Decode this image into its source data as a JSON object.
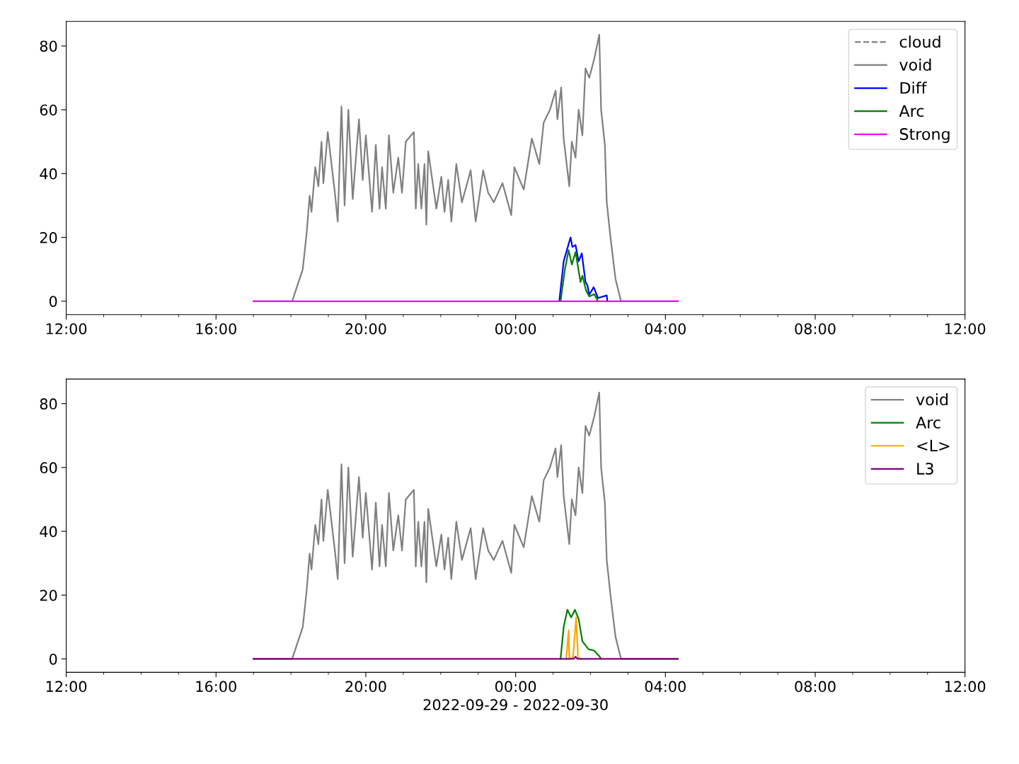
{
  "chart_data": [
    {
      "type": "line",
      "xlim": [
        "2022-09-29T12:00",
        "2022-09-30T12:00"
      ],
      "ylim": [
        -4.2,
        87.7
      ],
      "yticks": [
        0,
        20,
        40,
        60,
        80
      ],
      "xticks": [
        {
          "value": "2022-09-29T12:00",
          "label": "12:00"
        },
        {
          "value": "2022-09-29T13:00",
          "label": null
        },
        {
          "value": "2022-09-29T14:00",
          "label": null
        },
        {
          "value": "2022-09-29T15:00",
          "label": null
        },
        {
          "value": "2022-09-29T16:00",
          "label": "16:00"
        },
        {
          "value": "2022-09-29T17:00",
          "label": null
        },
        {
          "value": "2022-09-29T18:00",
          "label": null
        },
        {
          "value": "2022-09-29T19:00",
          "label": null
        },
        {
          "value": "2022-09-29T20:00",
          "label": "20:00"
        },
        {
          "value": "2022-09-29T21:00",
          "label": null
        },
        {
          "value": "2022-09-29T22:00",
          "label": null
        },
        {
          "value": "2022-09-29T23:00",
          "label": null
        },
        {
          "value": "2022-09-30T00:00",
          "label": "00:00"
        },
        {
          "value": "2022-09-30T01:00",
          "label": null
        },
        {
          "value": "2022-09-30T02:00",
          "label": null
        },
        {
          "value": "2022-09-30T03:00",
          "label": null
        },
        {
          "value": "2022-09-30T04:00",
          "label": "04:00"
        },
        {
          "value": "2022-09-30T05:00",
          "label": null
        },
        {
          "value": "2022-09-30T06:00",
          "label": null
        },
        {
          "value": "2022-09-30T07:00",
          "label": null
        },
        {
          "value": "2022-09-30T08:00",
          "label": "08:00"
        },
        {
          "value": "2022-09-30T09:00",
          "label": null
        },
        {
          "value": "2022-09-30T10:00",
          "label": null
        },
        {
          "value": "2022-09-30T11:00",
          "label": null
        },
        {
          "value": "2022-09-30T12:00",
          "label": "12:00"
        }
      ],
      "grid": false,
      "legend": "top right",
      "series": [
        {
          "name": "cloud",
          "color": "#808080",
          "line_style": "dashed"
        },
        {
          "name": "void",
          "color": "#808080",
          "x": [
            "2022-09-29T17:00",
            "2022-09-29T18:02",
            "2022-09-29T18:19",
            "2022-09-29T18:25",
            "2022-09-29T18:30",
            "2022-09-29T18:33",
            "2022-09-29T18:39",
            "2022-09-29T18:44",
            "2022-09-29T18:49",
            "2022-09-29T18:52",
            "2022-09-29T18:59",
            "2022-09-29T19:11",
            "2022-09-29T19:15",
            "2022-09-29T19:21",
            "2022-09-29T19:26",
            "2022-09-29T19:32",
            "2022-09-29T19:39",
            "2022-09-29T19:49",
            "2022-09-29T19:55",
            "2022-09-29T20:00",
            "2022-09-29T20:10",
            "2022-09-29T20:16",
            "2022-09-29T20:22",
            "2022-09-29T20:26",
            "2022-09-29T20:32",
            "2022-09-29T20:37",
            "2022-09-29T20:44",
            "2022-09-29T20:52",
            "2022-09-29T20:58",
            "2022-09-29T21:04",
            "2022-09-29T21:17",
            "2022-09-29T21:20",
            "2022-09-29T21:24",
            "2022-09-29T21:29",
            "2022-09-29T21:34",
            "2022-09-29T21:37",
            "2022-09-29T21:40",
            "2022-09-29T21:53",
            "2022-09-29T22:01",
            "2022-09-29T22:06",
            "2022-09-29T22:12",
            "2022-09-29T22:17",
            "2022-09-29T22:25",
            "2022-09-29T22:34",
            "2022-09-29T22:48",
            "2022-09-29T22:56",
            "2022-09-29T23:08",
            "2022-09-29T23:16",
            "2022-09-29T23:25",
            "2022-09-29T23:39",
            "2022-09-29T23:53",
            "2022-09-29T23:58",
            "2022-09-30T00:13",
            "2022-09-30T00:26",
            "2022-09-30T00:38",
            "2022-09-30T00:45",
            "2022-09-30T00:55",
            "2022-09-30T01:04",
            "2022-09-30T01:07",
            "2022-09-30T01:13",
            "2022-09-30T01:17",
            "2022-09-30T01:26",
            "2022-09-30T01:30",
            "2022-09-30T01:36",
            "2022-09-30T01:41",
            "2022-09-30T01:47",
            "2022-09-30T01:52",
            "2022-09-30T01:58",
            "2022-09-30T02:06",
            "2022-09-30T02:14",
            "2022-09-30T02:17",
            "2022-09-30T02:23",
            "2022-09-30T02:26",
            "2022-09-30T02:32",
            "2022-09-30T02:40",
            "2022-09-30T02:48",
            "2022-09-30T02:49",
            "2022-09-30T04:20"
          ],
          "values": [
            0,
            0,
            10,
            21,
            33,
            28,
            42,
            36,
            50,
            37,
            53,
            33,
            25,
            61,
            30,
            60,
            32,
            57,
            38,
            52,
            28,
            49,
            29,
            42,
            29,
            52,
            34,
            45,
            34,
            50,
            53,
            29,
            43,
            29,
            43,
            24,
            47,
            29,
            39,
            28,
            38,
            25,
            43,
            31,
            41,
            25,
            41,
            34,
            31,
            37,
            27,
            42,
            35,
            51,
            43,
            56,
            60,
            66,
            57,
            67,
            51,
            36,
            50,
            45,
            60,
            52,
            73,
            70,
            76,
            83.5,
            60,
            49,
            31,
            20,
            7,
            0.7,
            0,
            0
          ]
        },
        {
          "name": "Diff",
          "color": "#0000ff",
          "x": [
            "2022-09-30T01:10",
            "2022-09-30T01:17",
            "2022-09-30T01:28",
            "2022-09-30T01:31",
            "2022-09-30T01:36",
            "2022-09-30T01:41",
            "2022-09-30T01:46",
            "2022-09-30T01:52",
            "2022-09-30T01:55",
            "2022-09-30T01:58",
            "2022-09-30T02:05",
            "2022-09-30T02:12",
            "2022-09-30T02:26",
            "2022-09-30T02:27"
          ],
          "values": [
            0,
            12.5,
            20,
            17,
            17.6,
            12.5,
            15,
            6,
            5,
            2,
            4.4,
            1,
            1.8,
            0
          ]
        },
        {
          "name": "Arc",
          "color": "#008000",
          "x": [
            "2022-09-30T01:12",
            "2022-09-30T01:19",
            "2022-09-30T01:25",
            "2022-09-30T01:30",
            "2022-09-30T01:36",
            "2022-09-30T01:44",
            "2022-09-30T01:47",
            "2022-09-30T01:53",
            "2022-09-30T01:58",
            "2022-09-30T02:06",
            "2022-09-30T02:12"
          ],
          "values": [
            0,
            10,
            16,
            11.5,
            15.4,
            6,
            8,
            3.3,
            1.5,
            2.2,
            0
          ]
        },
        {
          "name": "Strong",
          "color": "#ff00ff",
          "x": [
            "2022-09-29T17:00",
            "2022-09-30T04:20"
          ],
          "values": [
            0,
            0
          ]
        }
      ]
    },
    {
      "type": "line",
      "xlim": [
        "2022-09-29T12:00",
        "2022-09-30T12:00"
      ],
      "ylim": [
        -4.2,
        87.7
      ],
      "yticks": [
        0,
        20,
        40,
        60,
        80
      ],
      "xlabel": "2022-09-29 - 2022-09-30",
      "xticks": [
        {
          "value": "2022-09-29T12:00",
          "label": "12:00"
        },
        {
          "value": "2022-09-29T13:00",
          "label": null
        },
        {
          "value": "2022-09-29T14:00",
          "label": null
        },
        {
          "value": "2022-09-29T15:00",
          "label": null
        },
        {
          "value": "2022-09-29T16:00",
          "label": "16:00"
        },
        {
          "value": "2022-09-29T17:00",
          "label": null
        },
        {
          "value": "2022-09-29T18:00",
          "label": null
        },
        {
          "value": "2022-09-29T19:00",
          "label": null
        },
        {
          "value": "2022-09-29T20:00",
          "label": "20:00"
        },
        {
          "value": "2022-09-29T21:00",
          "label": null
        },
        {
          "value": "2022-09-29T22:00",
          "label": null
        },
        {
          "value": "2022-09-29T23:00",
          "label": null
        },
        {
          "value": "2022-09-30T00:00",
          "label": "00:00"
        },
        {
          "value": "2022-09-30T01:00",
          "label": null
        },
        {
          "value": "2022-09-30T02:00",
          "label": null
        },
        {
          "value": "2022-09-30T03:00",
          "label": null
        },
        {
          "value": "2022-09-30T04:00",
          "label": "04:00"
        },
        {
          "value": "2022-09-30T05:00",
          "label": null
        },
        {
          "value": "2022-09-30T06:00",
          "label": null
        },
        {
          "value": "2022-09-30T07:00",
          "label": null
        },
        {
          "value": "2022-09-30T08:00",
          "label": "08:00"
        },
        {
          "value": "2022-09-30T09:00",
          "label": null
        },
        {
          "value": "2022-09-30T10:00",
          "label": null
        },
        {
          "value": "2022-09-30T11:00",
          "label": null
        },
        {
          "value": "2022-09-30T12:00",
          "label": "12:00"
        }
      ],
      "grid": false,
      "legend": "top right",
      "series": [
        {
          "name": "void",
          "color": "#808080",
          "x": [
            "2022-09-29T17:00",
            "2022-09-29T18:02",
            "2022-09-29T18:19",
            "2022-09-29T18:25",
            "2022-09-29T18:30",
            "2022-09-29T18:33",
            "2022-09-29T18:39",
            "2022-09-29T18:44",
            "2022-09-29T18:49",
            "2022-09-29T18:52",
            "2022-09-29T18:59",
            "2022-09-29T19:11",
            "2022-09-29T19:15",
            "2022-09-29T19:21",
            "2022-09-29T19:26",
            "2022-09-29T19:32",
            "2022-09-29T19:39",
            "2022-09-29T19:49",
            "2022-09-29T19:55",
            "2022-09-29T20:00",
            "2022-09-29T20:10",
            "2022-09-29T20:16",
            "2022-09-29T20:22",
            "2022-09-29T20:26",
            "2022-09-29T20:32",
            "2022-09-29T20:37",
            "2022-09-29T20:44",
            "2022-09-29T20:52",
            "2022-09-29T20:58",
            "2022-09-29T21:04",
            "2022-09-29T21:17",
            "2022-09-29T21:20",
            "2022-09-29T21:24",
            "2022-09-29T21:29",
            "2022-09-29T21:34",
            "2022-09-29T21:37",
            "2022-09-29T21:40",
            "2022-09-29T21:53",
            "2022-09-29T22:01",
            "2022-09-29T22:06",
            "2022-09-29T22:12",
            "2022-09-29T22:17",
            "2022-09-29T22:25",
            "2022-09-29T22:34",
            "2022-09-29T22:48",
            "2022-09-29T22:56",
            "2022-09-29T23:08",
            "2022-09-29T23:16",
            "2022-09-29T23:25",
            "2022-09-29T23:39",
            "2022-09-29T23:53",
            "2022-09-29T23:58",
            "2022-09-30T00:13",
            "2022-09-30T00:26",
            "2022-09-30T00:38",
            "2022-09-30T00:45",
            "2022-09-30T00:55",
            "2022-09-30T01:04",
            "2022-09-30T01:07",
            "2022-09-30T01:13",
            "2022-09-30T01:17",
            "2022-09-30T01:26",
            "2022-09-30T01:30",
            "2022-09-30T01:36",
            "2022-09-30T01:41",
            "2022-09-30T01:47",
            "2022-09-30T01:52",
            "2022-09-30T01:58",
            "2022-09-30T02:06",
            "2022-09-30T02:14",
            "2022-09-30T02:17",
            "2022-09-30T02:23",
            "2022-09-30T02:26",
            "2022-09-30T02:32",
            "2022-09-30T02:40",
            "2022-09-30T02:48",
            "2022-09-30T02:49",
            "2022-09-30T04:20"
          ],
          "values": [
            0,
            0,
            10,
            21,
            33,
            28,
            42,
            36,
            50,
            37,
            53,
            33,
            25,
            61,
            30,
            60,
            32,
            57,
            38,
            52,
            28,
            49,
            29,
            42,
            29,
            52,
            34,
            45,
            34,
            50,
            53,
            29,
            43,
            29,
            43,
            24,
            47,
            29,
            39,
            28,
            38,
            25,
            43,
            31,
            41,
            25,
            41,
            34,
            31,
            37,
            27,
            42,
            35,
            51,
            43,
            56,
            60,
            66,
            57,
            67,
            51,
            36,
            50,
            45,
            60,
            52,
            73,
            70,
            76,
            83.5,
            60,
            49,
            31,
            20,
            7,
            0.7,
            0,
            0
          ]
        },
        {
          "name": "Arc",
          "color": "#008000",
          "x": [
            "2022-09-30T01:12",
            "2022-09-30T01:17",
            "2022-09-30T01:23",
            "2022-09-30T01:29",
            "2022-09-30T01:35",
            "2022-09-30T01:41",
            "2022-09-30T01:47",
            "2022-09-30T01:57",
            "2022-09-30T02:06",
            "2022-09-30T02:14",
            "2022-09-30T02:17"
          ],
          "values": [
            0,
            10,
            15.4,
            13,
            15.4,
            12.5,
            5.5,
            3,
            2.6,
            0.9,
            0
          ]
        },
        {
          "name": "<L>",
          "color": "#ffa500",
          "x": [
            "2022-09-30T01:21",
            "2022-09-30T01:25",
            "2022-09-30T01:26",
            "2022-09-30T01:32",
            "2022-09-30T01:37",
            "2022-09-30T01:40",
            "2022-09-30T01:45"
          ],
          "values": [
            0,
            9,
            0,
            0.5,
            13,
            0.5,
            0
          ]
        },
        {
          "name": "L3",
          "color": "#800080",
          "x": [
            "2022-09-29T17:00",
            "2022-09-30T01:33",
            "2022-09-30T01:36",
            "2022-09-30T01:39",
            "2022-09-30T04:20"
          ],
          "values": [
            0,
            0,
            0.7,
            0,
            0
          ]
        }
      ]
    }
  ]
}
